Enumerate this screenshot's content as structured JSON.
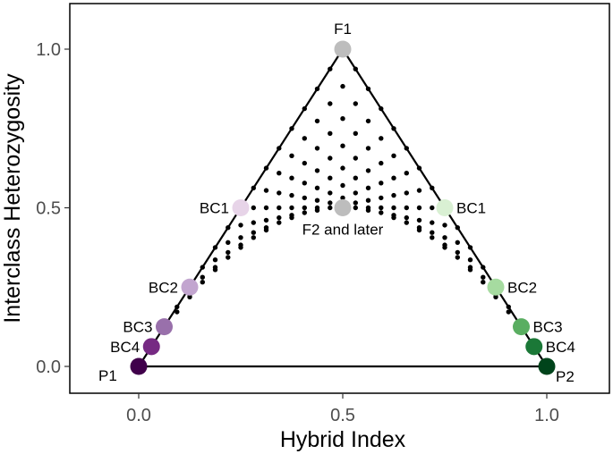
{
  "chart_data": {
    "type": "scatter",
    "xlabel": "Hybrid Index",
    "ylabel": "Interclass Heterozygosity",
    "xlim": [
      -0.12,
      1.12
    ],
    "ylim": [
      -0.03,
      1.12
    ],
    "x_ticks": [
      "0.0",
      "0.5",
      "1.0"
    ],
    "y_ticks": [
      "0.0",
      "0.5",
      "1.0"
    ],
    "x_tick_values": [
      0,
      0.5,
      1
    ],
    "y_tick_values": [
      0,
      0.5,
      1
    ],
    "grid": false,
    "legend": "none",
    "triangle": [
      [
        0,
        0
      ],
      [
        0.5,
        1
      ],
      [
        1,
        0
      ]
    ],
    "background_point_color": "#000000",
    "labeled_points": [
      {
        "label": "P1",
        "x": 0.0,
        "y": 0.0,
        "color": "#40004b",
        "label_pos": "left-below"
      },
      {
        "label": "BC4",
        "x": 0.03125,
        "y": 0.0625,
        "color": "#762a83",
        "label_pos": "left"
      },
      {
        "label": "BC3",
        "x": 0.0625,
        "y": 0.125,
        "color": "#9970ab",
        "label_pos": "left"
      },
      {
        "label": "BC2",
        "x": 0.125,
        "y": 0.25,
        "color": "#c2a5cf",
        "label_pos": "left"
      },
      {
        "label": "BC1",
        "x": 0.25,
        "y": 0.5,
        "color": "#e7d4e8",
        "label_pos": "left"
      },
      {
        "label": "F1",
        "x": 0.5,
        "y": 1.0,
        "color": "#bdbdbd",
        "label_pos": "above"
      },
      {
        "label": "F2 and later",
        "x": 0.5,
        "y": 0.5,
        "color": "#bdbdbd",
        "label_pos": "below"
      },
      {
        "label": "BC1",
        "x": 0.75,
        "y": 0.5,
        "color": "#d9f0d3",
        "label_pos": "right"
      },
      {
        "label": "BC2",
        "x": 0.875,
        "y": 0.25,
        "color": "#a6dba0",
        "label_pos": "right"
      },
      {
        "label": "BC3",
        "x": 0.9375,
        "y": 0.125,
        "color": "#5aae61",
        "label_pos": "right"
      },
      {
        "label": "BC4",
        "x": 0.96875,
        "y": 0.0625,
        "color": "#1b7837",
        "label_pos": "right"
      },
      {
        "label": "P2",
        "x": 1.0,
        "y": 0.0,
        "color": "#00441b",
        "label_pos": "right-below"
      }
    ]
  }
}
